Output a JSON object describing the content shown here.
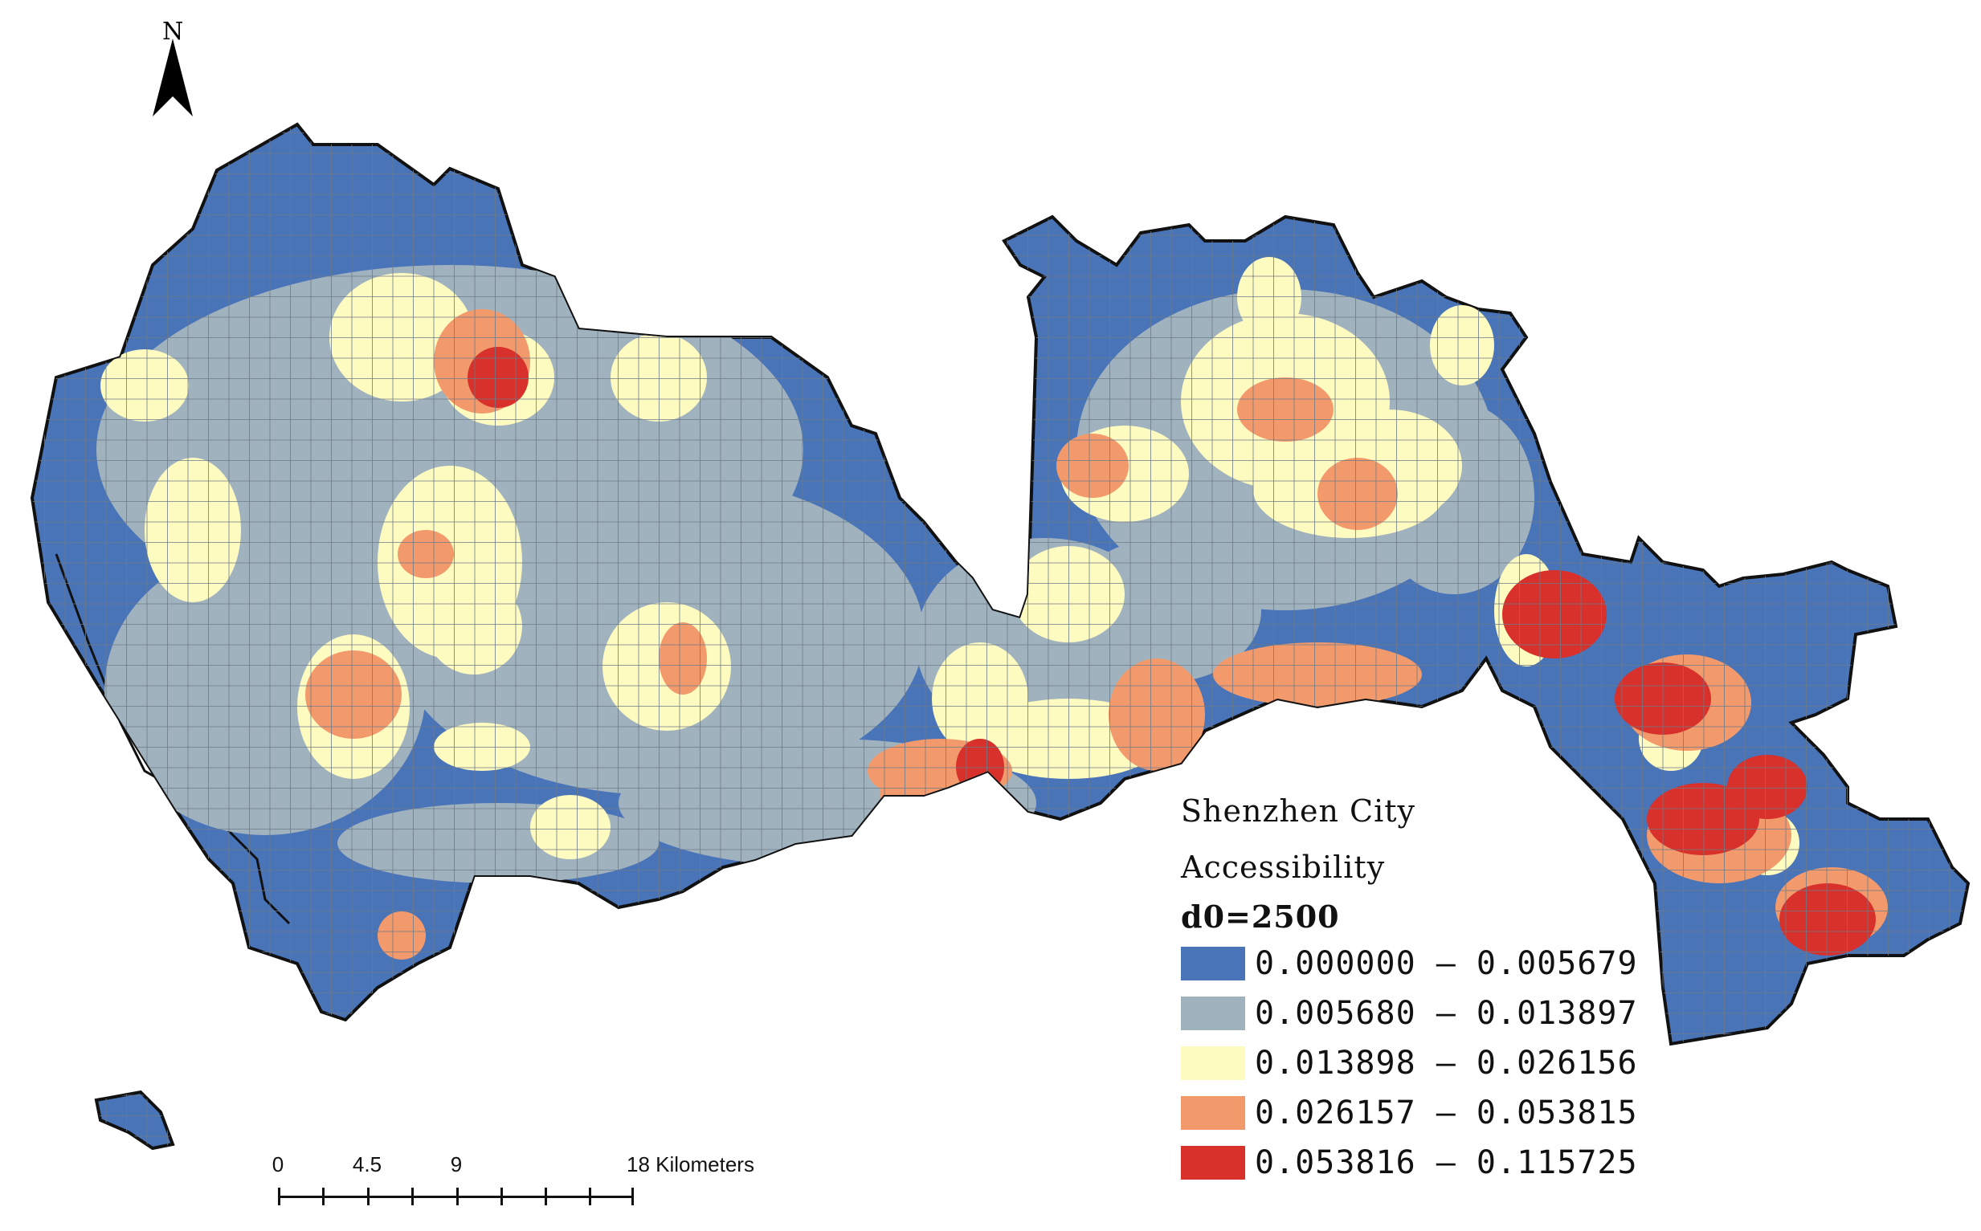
{
  "north_arrow": {
    "label": "N",
    "icon": "north-arrow-icon"
  },
  "legend": {
    "title_line1": "Shenzhen City",
    "title_line2": "Accessibility",
    "parameter": "d0=2500",
    "classes": [
      {
        "label": "0.000000 – 0.005679",
        "color": "#4a74b8"
      },
      {
        "label": "0.005680 – 0.013897",
        "color": "#a1b2bf"
      },
      {
        "label": "0.013898 – 0.026156",
        "color": "#fefbc0"
      },
      {
        "label": "0.026157 – 0.053815",
        "color": "#f39a6c"
      },
      {
        "label": "0.053816 – 0.115725",
        "color": "#d8302a"
      }
    ]
  },
  "scale_bar": {
    "labels": [
      "0",
      "4.5",
      "9",
      "18 Kilometers"
    ]
  },
  "colors": {
    "boundary": "#111111",
    "grid_line": "#6c7a88",
    "background": "#ffffff"
  }
}
